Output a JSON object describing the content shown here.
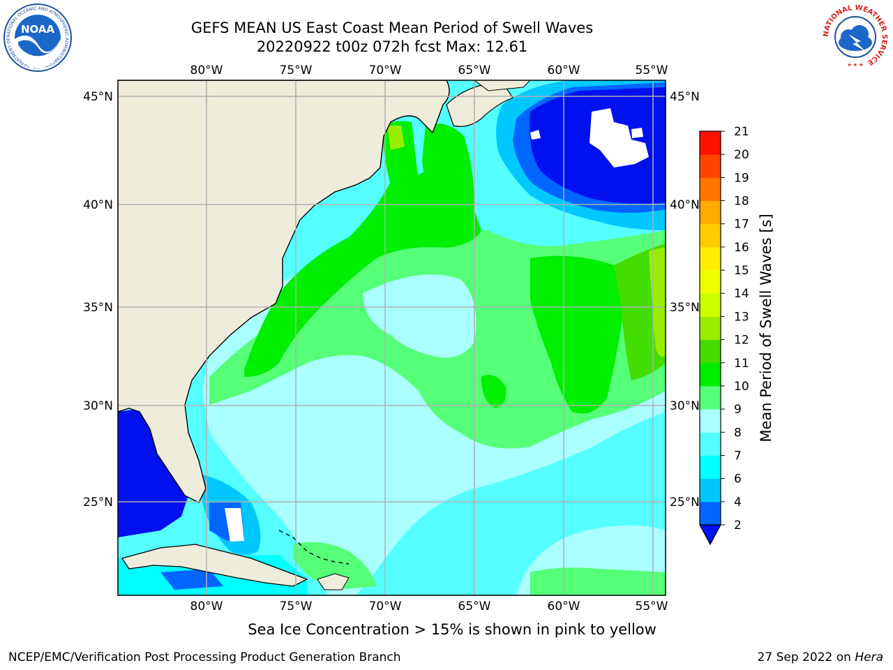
{
  "header": {
    "title_line1": "GEFS MEAN US East Coast Mean Period of Swell Waves",
    "title_line2": "20220922 t00z 072h fcst   Max: 12.61"
  },
  "logos": {
    "left": {
      "name": "NOAA",
      "text": "NOAA",
      "ring_text": "NATIONAL OCEANIC AND ATMOSPHERIC ADMINISTRATION · U.S. DEPARTMENT OF COMMERCE"
    },
    "right": {
      "name": "National Weather Service",
      "ring_text": "NATIONAL WEATHER SERVICE"
    }
  },
  "map": {
    "lon_labels": [
      "80°W",
      "75°W",
      "70°W",
      "65°W",
      "60°W",
      "55°W"
    ],
    "lat_labels": [
      "45°N",
      "40°N",
      "35°N",
      "30°N",
      "25°N"
    ],
    "colors": {
      "land": "#efecdc",
      "grid": "#b0b0b0",
      "coast": "#000000"
    }
  },
  "colorbar": {
    "label": "Mean Period of Swell Waves [s]",
    "ticks": [
      "2",
      "4",
      "6",
      "7",
      "8",
      "9",
      "10",
      "11",
      "12",
      "13",
      "14",
      "15",
      "16",
      "17",
      "18",
      "19",
      "20",
      "21"
    ],
    "extend_color": "#0010ee",
    "colors": [
      "#0066ff",
      "#00c8ff",
      "#00ffff",
      "#55ffff",
      "#aaffff",
      "#55ff77",
      "#00ee00",
      "#44dd00",
      "#99ee00",
      "#ccff00",
      "#eeff00",
      "#ffee00",
      "#ffcc00",
      "#ffaa00",
      "#ff7700",
      "#ff4400",
      "#ff1100"
    ]
  },
  "footer": {
    "note": "Sea Ice Concentration > 15% is shown in pink to yellow",
    "credit": "NCEP/EMC/Verification Post Processing Product Generation Branch",
    "date_prefix": "27 Sep 2022 on ",
    "host": "Hera"
  }
}
